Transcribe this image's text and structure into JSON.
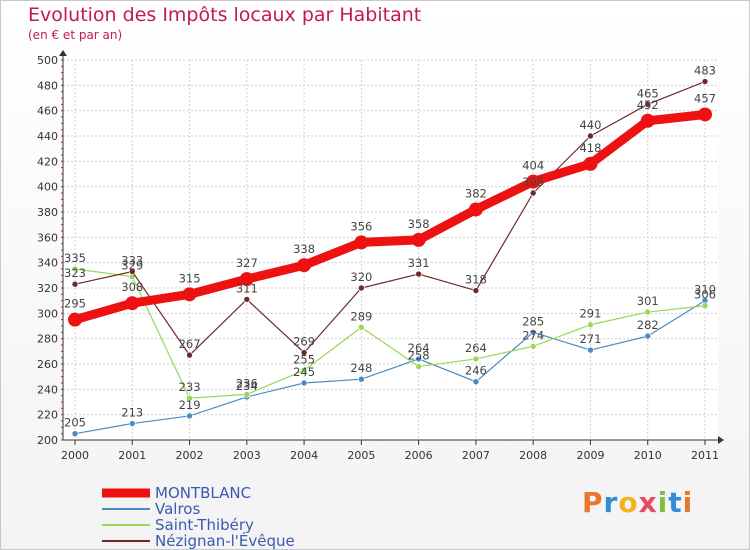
{
  "header": {
    "title": "Evolution des Impôts locaux par Habitant",
    "subtitle": "(en € et par an)"
  },
  "logo": {
    "text": "Proxiti",
    "letters": [
      "P",
      "r",
      "o",
      "x",
      "i",
      "t",
      "i"
    ],
    "colors": [
      "#e8762b",
      "#2f8fd6",
      "#f2b31c",
      "#e84a5f",
      "#7bbf3a",
      "#2f8fd6",
      "#e8762b"
    ]
  },
  "chart_data": {
    "type": "line",
    "title": "Evolution des Impôts locaux par Habitant",
    "subtitle": "(en € et par an)",
    "xlabel": "",
    "ylabel": "",
    "x": [
      "2000",
      "2001",
      "2002",
      "2003",
      "2004",
      "2005",
      "2006",
      "2007",
      "2008",
      "2009",
      "2010",
      "2011"
    ],
    "ylim": [
      200,
      500
    ],
    "yticks": [
      200,
      220,
      240,
      260,
      280,
      300,
      320,
      340,
      360,
      380,
      400,
      420,
      440,
      460,
      480,
      500
    ],
    "grid": true,
    "legend_position": "bottom-left",
    "series": [
      {
        "name": "Valros",
        "color": "#4a8bc2",
        "values": [
          205,
          213,
          219,
          234,
          245,
          248,
          264,
          246,
          285,
          271,
          282,
          310
        ]
      },
      {
        "name": "Saint-Thibéry",
        "color": "#99d65a",
        "values": [
          335,
          329,
          233,
          236,
          255,
          289,
          258,
          264,
          274,
          291,
          301,
          306
        ]
      },
      {
        "name": "Nézignan-l'Évêque",
        "color": "#6e2a2a",
        "values": [
          323,
          333,
          267,
          311,
          269,
          320,
          331,
          318,
          395,
          440,
          465,
          483
        ]
      },
      {
        "name": "MONTBLANC",
        "color": "#ee1111",
        "values": [
          295,
          308,
          315,
          327,
          338,
          356,
          358,
          382,
          404,
          418,
          452,
          457
        ]
      }
    ],
    "legend_order": [
      "MONTBLANC",
      "Valros",
      "Saint-Thibéry",
      "Nézignan-l'Évêque"
    ]
  }
}
